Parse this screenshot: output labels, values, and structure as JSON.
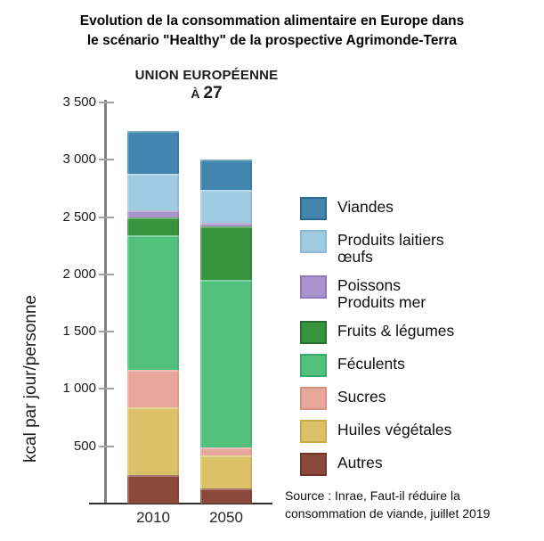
{
  "title": {
    "line1": "Evolution de la consommation alimentaire en Europe dans",
    "line2": "le scénario \"Healthy\" de la prospective Agrimonde-Terra"
  },
  "chart_data": {
    "type": "bar",
    "stacked": true,
    "title_line1": "UNION EUROPÉENNE",
    "title_line2_prefix": "À",
    "title_line2_number": "27",
    "ylabel": "kcal par jour/personne",
    "ylim": [
      0,
      3500
    ],
    "grid": false,
    "legend_position": "right",
    "categories": [
      "2010",
      "2050"
    ],
    "totals": [
      3250,
      3000
    ],
    "yticks": [
      {
        "value": 500,
        "label": "500"
      },
      {
        "value": 1000,
        "label": "1 000"
      },
      {
        "value": 1500,
        "label": "1 500"
      },
      {
        "value": 2000,
        "label": "2 000"
      },
      {
        "value": 2500,
        "label": "2 500"
      },
      {
        "value": 3000,
        "label": "3 000"
      },
      {
        "value": 3500,
        "label": "3 500"
      }
    ],
    "series_bottom_to_top": [
      {
        "name": "Autres",
        "legend_label": "Autres",
        "color": "#8b493c",
        "border_color": "#6e3529",
        "values": [
          250,
          130
        ]
      },
      {
        "name": "Huiles végétales",
        "legend_label": "Huiles végétales",
        "color": "#ddc168",
        "border_color": "#c7aa4e",
        "values": [
          590,
          290
        ]
      },
      {
        "name": "Sucres",
        "legend_label": "Sucres",
        "color": "#e8a79a",
        "border_color": "#db9084",
        "values": [
          330,
          70
        ]
      },
      {
        "name": "Féculents",
        "legend_label": "Féculents",
        "color": "#52c17e",
        "border_color": "#3aa866",
        "values": [
          1170,
          1460
        ]
      },
      {
        "name": "Fruits & légumes",
        "legend_label": "Fruits & légumes",
        "color": "#37933e",
        "border_color": "#26702f",
        "values": [
          160,
          470
        ]
      },
      {
        "name": "Poissons Produits mer",
        "legend_label": "Poissons\nProduits mer",
        "color": "#a893cc",
        "border_color": "#9177bd",
        "values": [
          60,
          30
        ]
      },
      {
        "name": "Produits laitiers œufs",
        "legend_label": "Produits laitiers\nœufs",
        "color": "#9fcbe3",
        "border_color": "#8bb9d6",
        "values": [
          320,
          290
        ]
      },
      {
        "name": "Viandes",
        "legend_label": "Viandes",
        "color": "#4285ae",
        "border_color": "#2d6b92",
        "values": [
          370,
          260
        ]
      }
    ]
  },
  "source": {
    "line1": "Source : Inrae, Faut-il réduire la",
    "line2": "consommation de viande, juillet 2019"
  }
}
